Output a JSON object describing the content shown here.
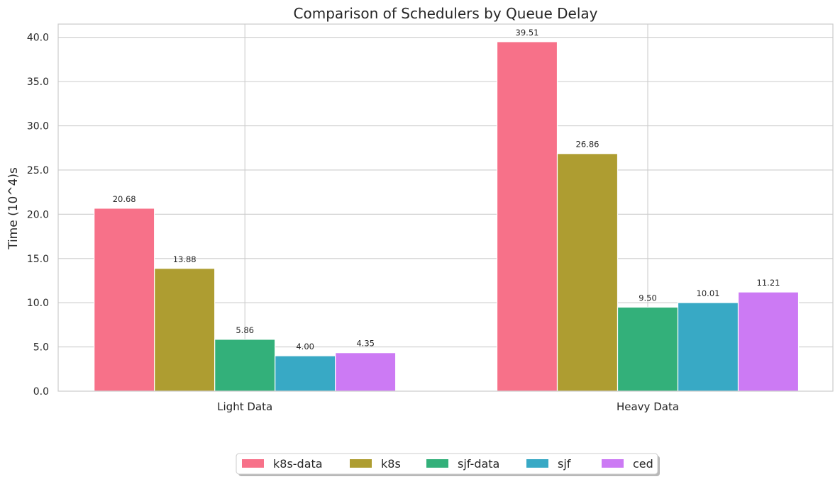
{
  "chart_data": {
    "type": "bar",
    "title": "Comparison of Schedulers by Queue Delay",
    "xlabel": "",
    "ylabel": "Time (10^4)s",
    "categories": [
      "Light Data",
      "Heavy Data"
    ],
    "series": [
      {
        "name": "k8s-data",
        "color": "#f77189",
        "values": [
          20.68,
          39.51
        ],
        "labels": [
          "20.68",
          "39.51"
        ]
      },
      {
        "name": "k8s",
        "color": "#ae9d31",
        "values": [
          13.88,
          26.86
        ],
        "labels": [
          "13.88",
          "26.86"
        ]
      },
      {
        "name": "sjf-data",
        "color": "#33b07a",
        "values": [
          5.86,
          9.5
        ],
        "labels": [
          "5.86",
          "9.50"
        ]
      },
      {
        "name": "sjf",
        "color": "#38a9c5",
        "values": [
          4.0,
          10.01
        ],
        "labels": [
          "4.00",
          "10.01"
        ]
      },
      {
        "name": "ced",
        "color": "#cc7af4",
        "values": [
          4.35,
          11.21
        ],
        "labels": [
          "4.35",
          "11.21"
        ]
      }
    ],
    "ylim": [
      0,
      41.5
    ],
    "yticks": [
      0,
      5,
      10,
      15,
      20,
      25,
      30,
      35,
      40
    ],
    "ytick_labels": [
      "0.0",
      "5.0",
      "10.0",
      "15.0",
      "20.0",
      "25.0",
      "30.0",
      "35.0",
      "40.0"
    ],
    "grid": true,
    "legend_position": "bottom-center"
  }
}
